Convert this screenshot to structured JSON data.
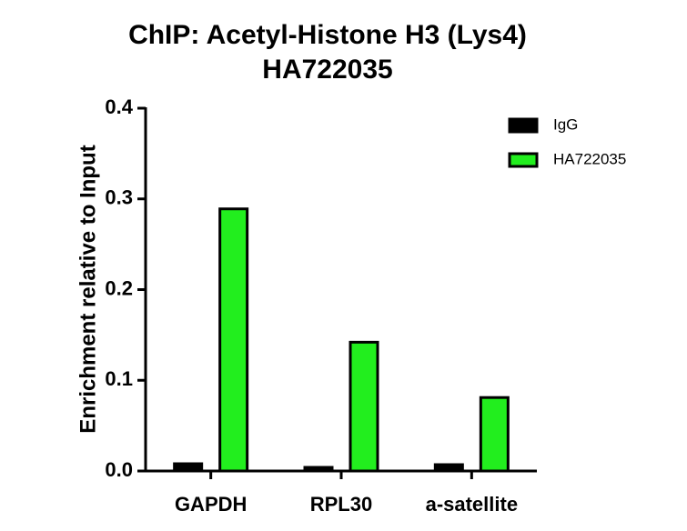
{
  "chart_data": {
    "type": "bar",
    "title": [
      "ChIP: Acetyl-Histone H3 (Lys4)",
      "HA722035"
    ],
    "y_label": "Enrichment relative to Input",
    "categories": [
      "GAPDH",
      "RPL30",
      "a-satellite"
    ],
    "series": [
      {
        "name": "IgG",
        "color": "#000000",
        "values": [
          0.008,
          0.004,
          0.007
        ]
      },
      {
        "name": "HA722035",
        "color": "#22ee1e",
        "values": [
          0.289,
          0.142,
          0.081
        ]
      }
    ],
    "ylim": [
      0,
      0.4
    ],
    "yticks": [
      {
        "value": 0,
        "label": "0.0"
      },
      0.1,
      0.2,
      0.3,
      0.4
    ],
    "legend": "top-right"
  }
}
